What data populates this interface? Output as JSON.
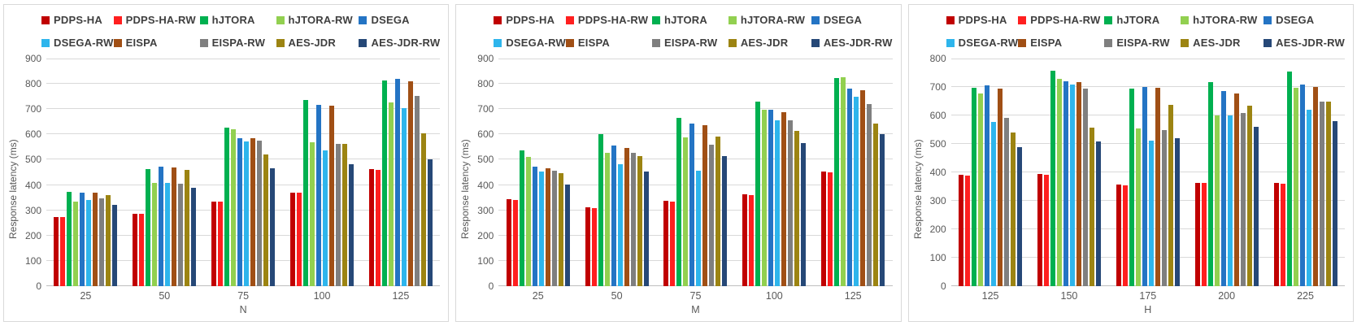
{
  "chart_data": [
    {
      "type": "bar",
      "title": "",
      "xlabel": "N",
      "ylabel": "Response latency (ms)",
      "ylim": [
        0,
        900
      ],
      "ytick_step": 100,
      "grid": "on",
      "legend_position": "top",
      "legend_rows": 2,
      "categories": [
        "25",
        "50",
        "75",
        "100",
        "125"
      ],
      "series": [
        {
          "name": "PDPS-HA",
          "color": "#C00000",
          "values": [
            273,
            287,
            335,
            371,
            462
          ]
        },
        {
          "name": "PDPS-HA-RW",
          "color": "#FF1F1F",
          "values": [
            272,
            286,
            334,
            370,
            460
          ]
        },
        {
          "name": "hJTORA",
          "color": "#00B050",
          "values": [
            374,
            464,
            628,
            737,
            814
          ]
        },
        {
          "name": "hJTORA-RW",
          "color": "#92D050",
          "values": [
            333,
            407,
            622,
            570,
            725
          ]
        },
        {
          "name": "DSEGA",
          "color": "#2474C4",
          "values": [
            369,
            472,
            585,
            716,
            819
          ]
        },
        {
          "name": "DSEGA-RW",
          "color": "#2EB5EC",
          "values": [
            342,
            407,
            572,
            538,
            703
          ]
        },
        {
          "name": "EISPA",
          "color": "#A04F15",
          "values": [
            369,
            470,
            584,
            713,
            810
          ]
        },
        {
          "name": "EISPA-RW",
          "color": "#7F7F7F",
          "values": [
            346,
            404,
            577,
            561,
            752
          ]
        },
        {
          "name": "AES-JDR",
          "color": "#9C8412",
          "values": [
            361,
            461,
            521,
            561,
            605
          ]
        },
        {
          "name": "AES-JDR-RW",
          "color": "#264877",
          "values": [
            321,
            390,
            467,
            481,
            502
          ]
        }
      ]
    },
    {
      "type": "bar",
      "title": "",
      "xlabel": "M",
      "ylabel": "Response latency (ms)",
      "ylim": [
        0,
        900
      ],
      "ytick_step": 100,
      "grid": "on",
      "legend_position": "top",
      "legend_rows": 2,
      "categories": [
        "25",
        "50",
        "75",
        "100",
        "125"
      ],
      "series": [
        {
          "name": "PDPS-HA",
          "color": "#C00000",
          "values": [
            343,
            311,
            337,
            362,
            452
          ]
        },
        {
          "name": "PDPS-HA-RW",
          "color": "#FF1F1F",
          "values": [
            340,
            308,
            335,
            360,
            450
          ]
        },
        {
          "name": "hJTORA",
          "color": "#00B050",
          "values": [
            537,
            600,
            667,
            729,
            822
          ]
        },
        {
          "name": "hJTORA-RW",
          "color": "#92D050",
          "values": [
            510,
            527,
            588,
            696,
            825
          ]
        },
        {
          "name": "DSEGA",
          "color": "#2474C4",
          "values": [
            473,
            557,
            642,
            698,
            781
          ]
        },
        {
          "name": "DSEGA-RW",
          "color": "#2EB5EC",
          "values": [
            452,
            483,
            455,
            655,
            749
          ]
        },
        {
          "name": "EISPA",
          "color": "#A04F15",
          "values": [
            466,
            548,
            636,
            689,
            775
          ]
        },
        {
          "name": "EISPA-RW",
          "color": "#7F7F7F",
          "values": [
            457,
            527,
            560,
            657,
            719
          ]
        },
        {
          "name": "AES-JDR",
          "color": "#9C8412",
          "values": [
            446,
            514,
            593,
            614,
            644
          ]
        },
        {
          "name": "AES-JDR-RW",
          "color": "#264877",
          "values": [
            401,
            452,
            514,
            566,
            600
          ]
        }
      ]
    },
    {
      "type": "bar",
      "title": "",
      "xlabel": "H",
      "ylabel": "Response latency (ms)",
      "ylim": [
        0,
        800
      ],
      "ytick_step": 100,
      "grid": "on",
      "legend_position": "top",
      "legend_rows": 2,
      "categories": [
        "125",
        "150",
        "175",
        "200",
        "225"
      ],
      "series": [
        {
          "name": "PDPS-HA",
          "color": "#C00000",
          "values": [
            392,
            394,
            356,
            364,
            362
          ]
        },
        {
          "name": "PDPS-HA-RW",
          "color": "#FF1F1F",
          "values": [
            390,
            392,
            354,
            362,
            361
          ]
        },
        {
          "name": "hJTORA",
          "color": "#00B050",
          "values": [
            697,
            757,
            694,
            716,
            755
          ]
        },
        {
          "name": "hJTORA-RW",
          "color": "#92D050",
          "values": [
            678,
            730,
            553,
            600,
            696
          ]
        },
        {
          "name": "DSEGA",
          "color": "#2474C4",
          "values": [
            705,
            719,
            701,
            687,
            710
          ]
        },
        {
          "name": "DSEGA-RW",
          "color": "#2EB5EC",
          "values": [
            578,
            709,
            512,
            600,
            621
          ]
        },
        {
          "name": "EISPA",
          "color": "#A04F15",
          "values": [
            694,
            716,
            698,
            676,
            701
          ]
        },
        {
          "name": "EISPA-RW",
          "color": "#7F7F7F",
          "values": [
            591,
            693,
            548,
            610,
            650
          ]
        },
        {
          "name": "AES-JDR",
          "color": "#9C8412",
          "values": [
            540,
            557,
            636,
            635,
            648
          ]
        },
        {
          "name": "AES-JDR-RW",
          "color": "#264877",
          "values": [
            488,
            508,
            521,
            560,
            581
          ]
        }
      ]
    }
  ],
  "style": {
    "axis_text_color": "#595959",
    "legend_text_color": "#3F3F3F",
    "gridline_color": "#D9D9D9",
    "panel_border_color": "#D9D9D9"
  }
}
